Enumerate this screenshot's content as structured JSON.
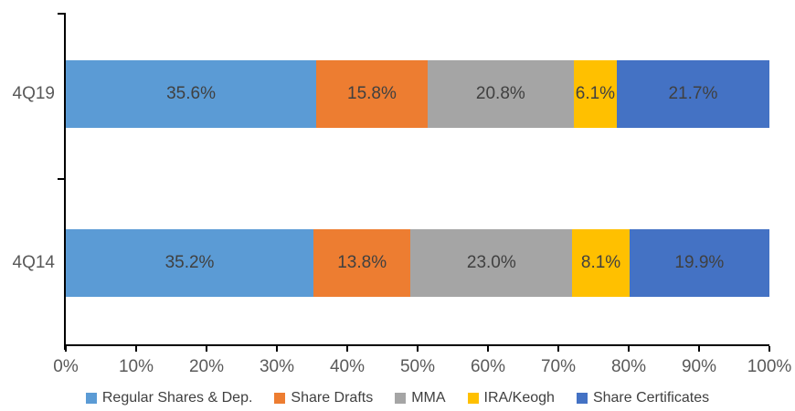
{
  "chart_data": {
    "type": "bar",
    "subtype": "horizontal-stacked-100pct",
    "title": "",
    "categories": [
      "4Q19",
      "4Q14"
    ],
    "series": [
      {
        "name": "Regular Shares & Dep.",
        "color": "#5B9BD5",
        "values": [
          35.6,
          35.2
        ]
      },
      {
        "name": "Share Drafts",
        "color": "#ED7D31",
        "values": [
          15.8,
          13.8
        ]
      },
      {
        "name": "MMA",
        "color": "#A5A5A5",
        "values": [
          20.8,
          23.0
        ]
      },
      {
        "name": "IRA/Keogh",
        "color": "#FFC000",
        "values": [
          6.1,
          8.1
        ]
      },
      {
        "name": "Share Certificates",
        "color": "#4472C4",
        "values": [
          21.7,
          19.9
        ]
      }
    ],
    "value_labels": [
      [
        "35.6%",
        "15.8%",
        "20.8%",
        "6.1%",
        "21.7%"
      ],
      [
        "35.2%",
        "13.8%",
        "23.0%",
        "8.1%",
        "19.9%"
      ]
    ],
    "x_axis": {
      "min": 0,
      "max": 100,
      "tick_labels": [
        "0%",
        "10%",
        "20%",
        "30%",
        "40%",
        "50%",
        "60%",
        "70%",
        "80%",
        "90%",
        "100%"
      ]
    },
    "legend": {
      "position": "bottom",
      "entries": [
        "Regular Shares & Dep.",
        "Share Drafts",
        "MMA",
        "IRA/Keogh",
        "Share Certificates"
      ]
    },
    "grid": false
  },
  "colors": {
    "background": "#FFFFFF",
    "axis_line": "#000000",
    "axis_tick_label": "#595959",
    "category_label": "#595959",
    "data_label": "#404040",
    "legend_label": "#404040"
  }
}
